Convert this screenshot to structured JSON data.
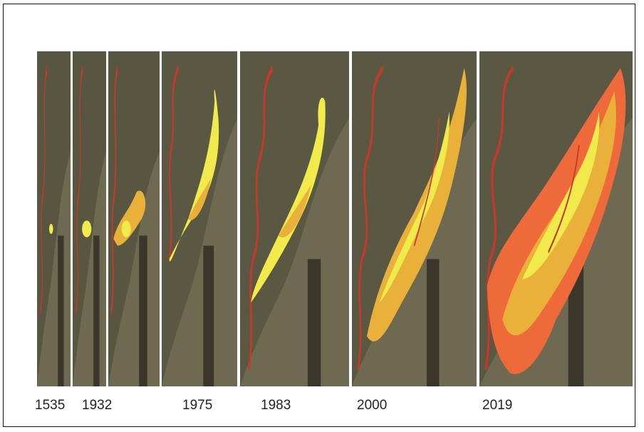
{
  "figure": {
    "panels": [
      {
        "year": "1535"
      },
      {
        "year": "1932"
      },
      {
        "year": ""
      },
      {
        "year": "1975"
      },
      {
        "year": "1983"
      },
      {
        "year": "2000"
      },
      {
        "year": "2019"
      }
    ]
  },
  "colors": {
    "terrain": "#6e6a52",
    "dark_terrain": "#3c3a2c",
    "river": "#c23a2a",
    "urban_early": "#f0ea4a",
    "urban_mid": "#e9b13a",
    "urban_late": "#ee6a3a"
  }
}
